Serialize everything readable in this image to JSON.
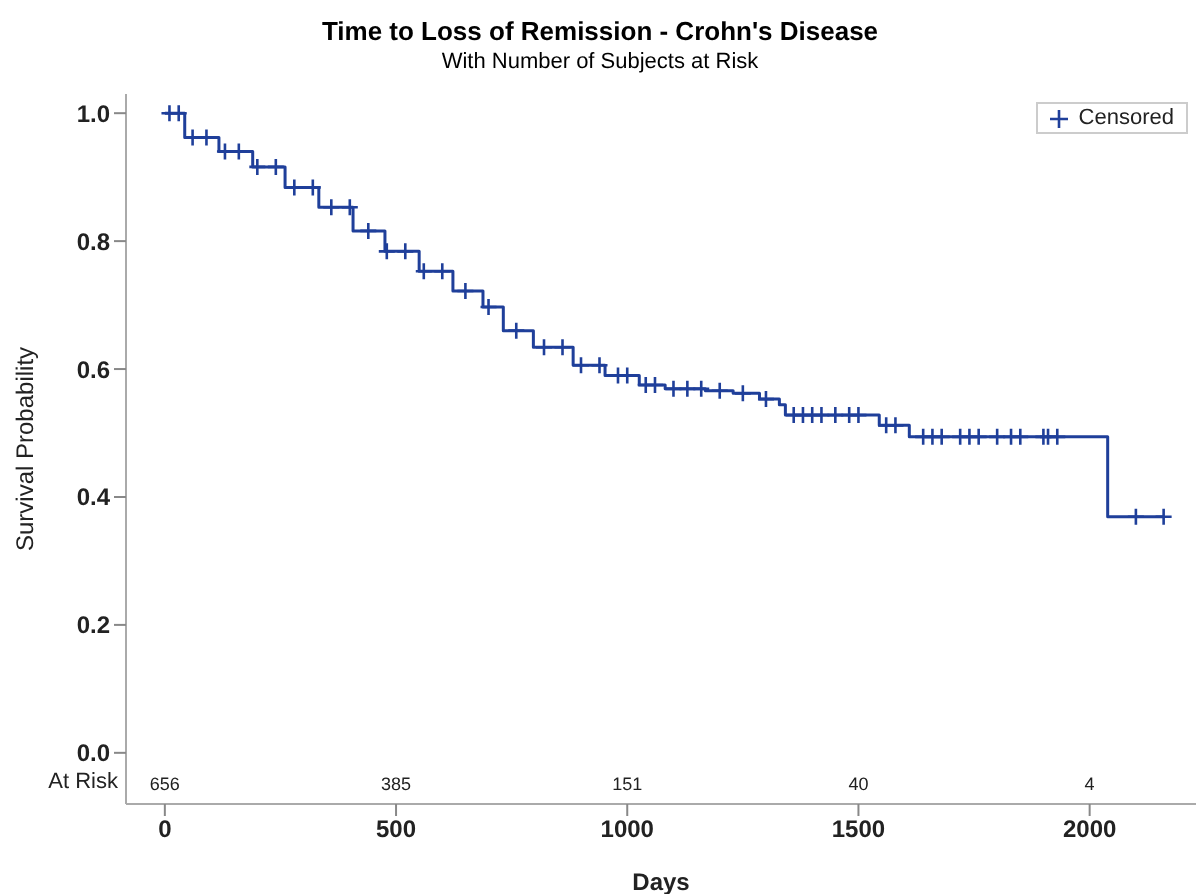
{
  "chart_data": {
    "type": "step",
    "title": "Time to Loss of Remission - Crohn's Disease",
    "subtitle": "With Number of Subjects at Risk",
    "xlabel": "Days",
    "ylabel": "Survival Probability",
    "xlim": [
      -84,
      2230
    ],
    "xticks": [
      0,
      500,
      1000,
      1500,
      2000
    ],
    "ylim": [
      -0.08,
      1.03
    ],
    "yticks": [
      {
        "value": 0,
        "label": "0.0"
      },
      {
        "value": 0.2,
        "label": "0.2"
      },
      {
        "value": 0.4,
        "label": "0.4"
      },
      {
        "value": 0.6,
        "label": "0.6"
      },
      {
        "value": 0.8,
        "label": "0.8"
      },
      {
        "value": 1,
        "label": "1.0"
      }
    ],
    "grid": false,
    "legend": "top right",
    "series": [
      {
        "color": "#1f3f9a",
        "marker": "none",
        "x": [
          0,
          43,
          117,
          190,
          260,
          333,
          407,
          476,
          550,
          623,
          688,
          732,
          797,
          883,
          952,
          1026,
          1082,
          1169,
          1229,
          1286,
          1329,
          1342,
          1532,
          1545,
          1602,
          1610,
          2039,
          2160
        ],
        "values": [
          1.0,
          0.962,
          0.94,
          0.916,
          0.884,
          0.853,
          0.816,
          0.784,
          0.753,
          0.722,
          0.697,
          0.66,
          0.634,
          0.606,
          0.59,
          0.575,
          0.569,
          0.566,
          0.562,
          0.553,
          0.544,
          0.528,
          0.528,
          0.512,
          0.512,
          0.494,
          0.369,
          0.369
        ]
      },
      {
        "type": "scatter",
        "name": "Censored",
        "color": "#1f3f9a",
        "marker": "cross",
        "x": [
          10,
          30,
          60,
          90,
          130,
          160,
          200,
          240,
          280,
          320,
          360,
          400,
          440,
          480,
          520,
          560,
          600,
          650,
          700,
          760,
          820,
          860,
          900,
          940,
          980,
          1000,
          1040,
          1060,
          1100,
          1130,
          1160,
          1200,
          1250,
          1300,
          1360,
          1380,
          1400,
          1420,
          1450,
          1480,
          1500,
          1560,
          1580,
          1640,
          1660,
          1680,
          1720,
          1740,
          1760,
          1800,
          1830,
          1850,
          1900,
          1910,
          1930,
          2100,
          2160
        ],
        "values": [
          1.0,
          1.0,
          0.962,
          0.962,
          0.94,
          0.94,
          0.916,
          0.916,
          0.884,
          0.884,
          0.853,
          0.853,
          0.816,
          0.784,
          0.784,
          0.753,
          0.753,
          0.722,
          0.697,
          0.66,
          0.634,
          0.634,
          0.606,
          0.606,
          0.59,
          0.59,
          0.575,
          0.575,
          0.569,
          0.569,
          0.569,
          0.566,
          0.562,
          0.553,
          0.528,
          0.528,
          0.528,
          0.528,
          0.528,
          0.528,
          0.528,
          0.512,
          0.512,
          0.494,
          0.494,
          0.494,
          0.494,
          0.494,
          0.494,
          0.494,
          0.494,
          0.494,
          0.494,
          0.494,
          0.494,
          0.369,
          0.369
        ]
      }
    ],
    "annotations": [
      "At Risk",
      "656",
      "385",
      "151",
      "40",
      "4"
    ]
  }
}
